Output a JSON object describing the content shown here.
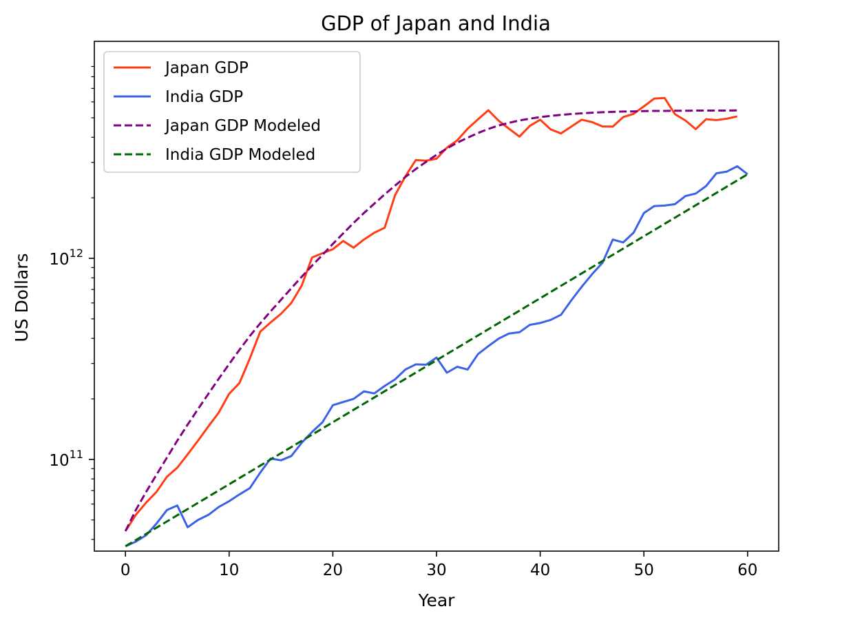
{
  "chart_data": {
    "type": "line",
    "title": "GDP of Japan and India",
    "xlabel": "Year",
    "ylabel": "US Dollars",
    "yscale": "log",
    "xlim": [
      -3,
      63
    ],
    "ylim": [
      35000000000.0,
      12000000000000.0
    ],
    "grid": false,
    "legend_position": "upper-left",
    "x_ticks": [
      0,
      10,
      20,
      30,
      40,
      50,
      60
    ],
    "y_ticks": [
      {
        "value": 100000000000.0,
        "base": "10",
        "exp": "11"
      },
      {
        "value": 1000000000000.0,
        "base": "10",
        "exp": "12"
      }
    ],
    "series": [
      {
        "name": "Japan GDP",
        "style": "solid",
        "color": "#ff3c14",
        "x": [
          0,
          1,
          2,
          3,
          4,
          5,
          6,
          7,
          8,
          9,
          10,
          11,
          12,
          13,
          14,
          15,
          16,
          17,
          18,
          19,
          20,
          21,
          22,
          23,
          24,
          25,
          26,
          27,
          28,
          29,
          30,
          31,
          32,
          33,
          34,
          35,
          36,
          37,
          38,
          39,
          40,
          41,
          42,
          43,
          44,
          45,
          46,
          47,
          48,
          49,
          50,
          51,
          52,
          53,
          54,
          55,
          56,
          57,
          58,
          59
        ],
        "values": [
          44000000000.0,
          53000000000.0,
          61000000000.0,
          69000000000.0,
          82000000000.0,
          91000000000.0,
          106000000000.0,
          124000000000.0,
          146000000000.0,
          171000000000.0,
          212000000000.0,
          240000000000.0,
          318000000000.0,
          432000000000.0,
          480000000000.0,
          530000000000.0,
          600000000000.0,
          732000000000.0,
          1010000000000.0,
          1060000000000.0,
          1110000000000.0,
          1220000000000.0,
          1130000000000.0,
          1240000000000.0,
          1340000000000.0,
          1420000000000.0,
          2060000000000.0,
          2560000000000.0,
          3080000000000.0,
          3060000000000.0,
          3130000000000.0,
          3550000000000.0,
          3860000000000.0,
          4410000000000.0,
          4910000000000.0,
          5450000000000.0,
          4830000000000.0,
          4410000000000.0,
          4030000000000.0,
          4560000000000.0,
          4890000000000.0,
          4380000000000.0,
          4180000000000.0,
          4520000000000.0,
          4890000000000.0,
          4760000000000.0,
          4530000000000.0,
          4520000000000.0,
          5040000000000.0,
          5230000000000.0,
          5700000000000.0,
          6230000000000.0,
          6270000000000.0,
          5210000000000.0,
          4850000000000.0,
          4390000000000.0,
          4920000000000.0,
          4870000000000.0,
          4950000000000.0,
          5080000000000.0
        ]
      },
      {
        "name": "India GDP",
        "style": "solid",
        "color": "#3b62e6",
        "x": [
          0,
          1,
          2,
          3,
          4,
          5,
          6,
          7,
          8,
          9,
          10,
          11,
          12,
          13,
          14,
          15,
          16,
          17,
          18,
          19,
          20,
          21,
          22,
          23,
          24,
          25,
          26,
          27,
          28,
          29,
          30,
          31,
          32,
          33,
          34,
          35,
          36,
          37,
          38,
          39,
          40,
          41,
          42,
          43,
          44,
          45,
          46,
          47,
          48,
          49,
          50,
          51,
          52,
          53,
          54,
          55,
          56,
          57,
          58,
          59,
          60
        ],
        "values": [
          37000000000.0,
          39000000000.0,
          42000000000.0,
          48000000000.0,
          56000000000.0,
          59000000000.0,
          46000000000.0,
          50000000000.0,
          53000000000.0,
          58000000000.0,
          62000000000.0,
          67000000000.0,
          72000000000.0,
          86000000000.0,
          101000000000.0,
          99000000000.0,
          104000000000.0,
          121000000000.0,
          137000000000.0,
          153000000000.0,
          186000000000.0,
          193000000000.0,
          200000000000.0,
          218000000000.0,
          213000000000.0,
          232000000000.0,
          250000000000.0,
          280000000000.0,
          297000000000.0,
          296000000000.0,
          321000000000.0,
          270000000000.0,
          289000000000.0,
          280000000000.0,
          334000000000.0,
          366000000000.0,
          399000000000.0,
          423000000000.0,
          429000000000.0,
          467000000000.0,
          477000000000.0,
          494000000000.0,
          524000000000.0,
          618000000000.0,
          722000000000.0,
          834000000000.0,
          949000000000.0,
          1240000000000.0,
          1200000000000.0,
          1340000000000.0,
          1680000000000.0,
          1820000000000.0,
          1830000000000.0,
          1860000000000.0,
          2040000000000.0,
          2100000000000.0,
          2290000000000.0,
          2650000000000.0,
          2700000000000.0,
          2870000000000.0,
          2620000000000.0
        ]
      },
      {
        "name": "Japan GDP Modeled",
        "style": "dashed",
        "color": "#800080",
        "x": [
          0,
          1,
          2,
          3,
          4,
          5,
          6,
          7,
          8,
          9,
          10,
          11,
          12,
          13,
          14,
          15,
          16,
          17,
          18,
          19,
          20,
          21,
          22,
          23,
          24,
          25,
          26,
          27,
          28,
          29,
          30,
          31,
          32,
          33,
          34,
          35,
          36,
          37,
          38,
          39,
          40,
          41,
          42,
          43,
          44,
          45,
          46,
          47,
          48,
          49,
          50,
          51,
          52,
          53,
          54,
          55,
          56,
          57,
          58,
          59
        ],
        "values": [
          44000000000.0,
          56000000000.0,
          69000000000.0,
          84000000000.0,
          102000000000.0,
          124000000000.0,
          149000000000.0,
          178000000000.0,
          212000000000.0,
          252000000000.0,
          298000000000.0,
          351000000000.0,
          411000000000.0,
          475000000000.0,
          545000000000.0,
          622000000000.0,
          710000000000.0,
          810000000000.0,
          920000000000.0,
          1040000000000.0,
          1180000000000.0,
          1330000000000.0,
          1500000000000.0,
          1680000000000.0,
          1870000000000.0,
          2080000000000.0,
          2300000000000.0,
          2540000000000.0,
          2780000000000.0,
          3020000000000.0,
          3270000000000.0,
          3520000000000.0,
          3760000000000.0,
          3980000000000.0,
          4200000000000.0,
          4400000000000.0,
          4580000000000.0,
          4720000000000.0,
          4850000000000.0,
          4950000000000.0,
          5040000000000.0,
          5110000000000.0,
          5170000000000.0,
          5220000000000.0,
          5260000000000.0,
          5300000000000.0,
          5330000000000.0,
          5350000000000.0,
          5370000000000.0,
          5380000000000.0,
          5400000000000.0,
          5410000000000.0,
          5410000000000.0,
          5420000000000.0,
          5420000000000.0,
          5430000000000.0,
          5430000000000.0,
          5430000000000.0,
          5430000000000.0,
          5440000000000.0
        ]
      },
      {
        "name": "India GDP Modeled",
        "style": "dashed",
        "color": "#006400",
        "x": [
          0,
          60
        ],
        "values": [
          37000000000.0,
          2620000000000.0
        ]
      }
    ]
  }
}
